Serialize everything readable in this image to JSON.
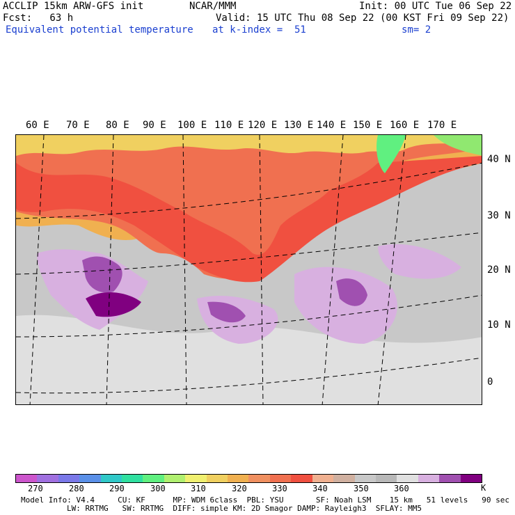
{
  "header": {
    "line1_left": "ACCLIP 15km ARW-GFS init",
    "line1_center": "NCAR/MMM",
    "line1_right": "Init: 00 UTC Tue 06 Sep 22",
    "line2_left": "Fcst:   63 h",
    "line2_right": "Valid: 15 UTC Thu 08 Sep 22 (00 KST Fri 09 Sep 22)",
    "line3_left": "Equivalent potential temperature",
    "line3_center": "at k-index =  51",
    "line3_right": "sm= 2"
  },
  "map": {
    "longitude_labels": [
      "60 E",
      "70 E",
      "80 E",
      "90 E",
      "100 E",
      "110 E",
      "120 E",
      "130 E",
      "140 E",
      "150 E",
      "160 E",
      "170 E"
    ],
    "latitude_labels": [
      "40 N",
      "30 N",
      "20 N",
      "10 N",
      "0"
    ]
  },
  "legend": {
    "unit": "K",
    "labels": [
      "270",
      "280",
      "290",
      "300",
      "310",
      "320",
      "330",
      "340",
      "350",
      "360"
    ],
    "colors": [
      "#cc55cc",
      "#a070e0",
      "#7a78e8",
      "#5a90e8",
      "#30c8c8",
      "#30e0a0",
      "#60f080",
      "#b0f070",
      "#f0f070",
      "#f0d060",
      "#f0b050",
      "#f09060",
      "#f07050",
      "#f05040",
      "#f0b090",
      "#d0b0a0",
      "#c8c8c8",
      "#b8b8b8",
      "#e0e0e0",
      "#d8b0e0",
      "#a050b0",
      "#800080"
    ]
  },
  "footer": {
    "line1": "Model Info: V4.4     CU: KF      MP: WDM 6class  PBL: YSU       SF: Noah LSM    15 km   51 levels   90 sec",
    "line2": "LW: RRTMG   SW: RRTMG  DIFF: simple KM: 2D Smagor DAMP: Rayleigh3  SFLAY: MM5"
  }
}
